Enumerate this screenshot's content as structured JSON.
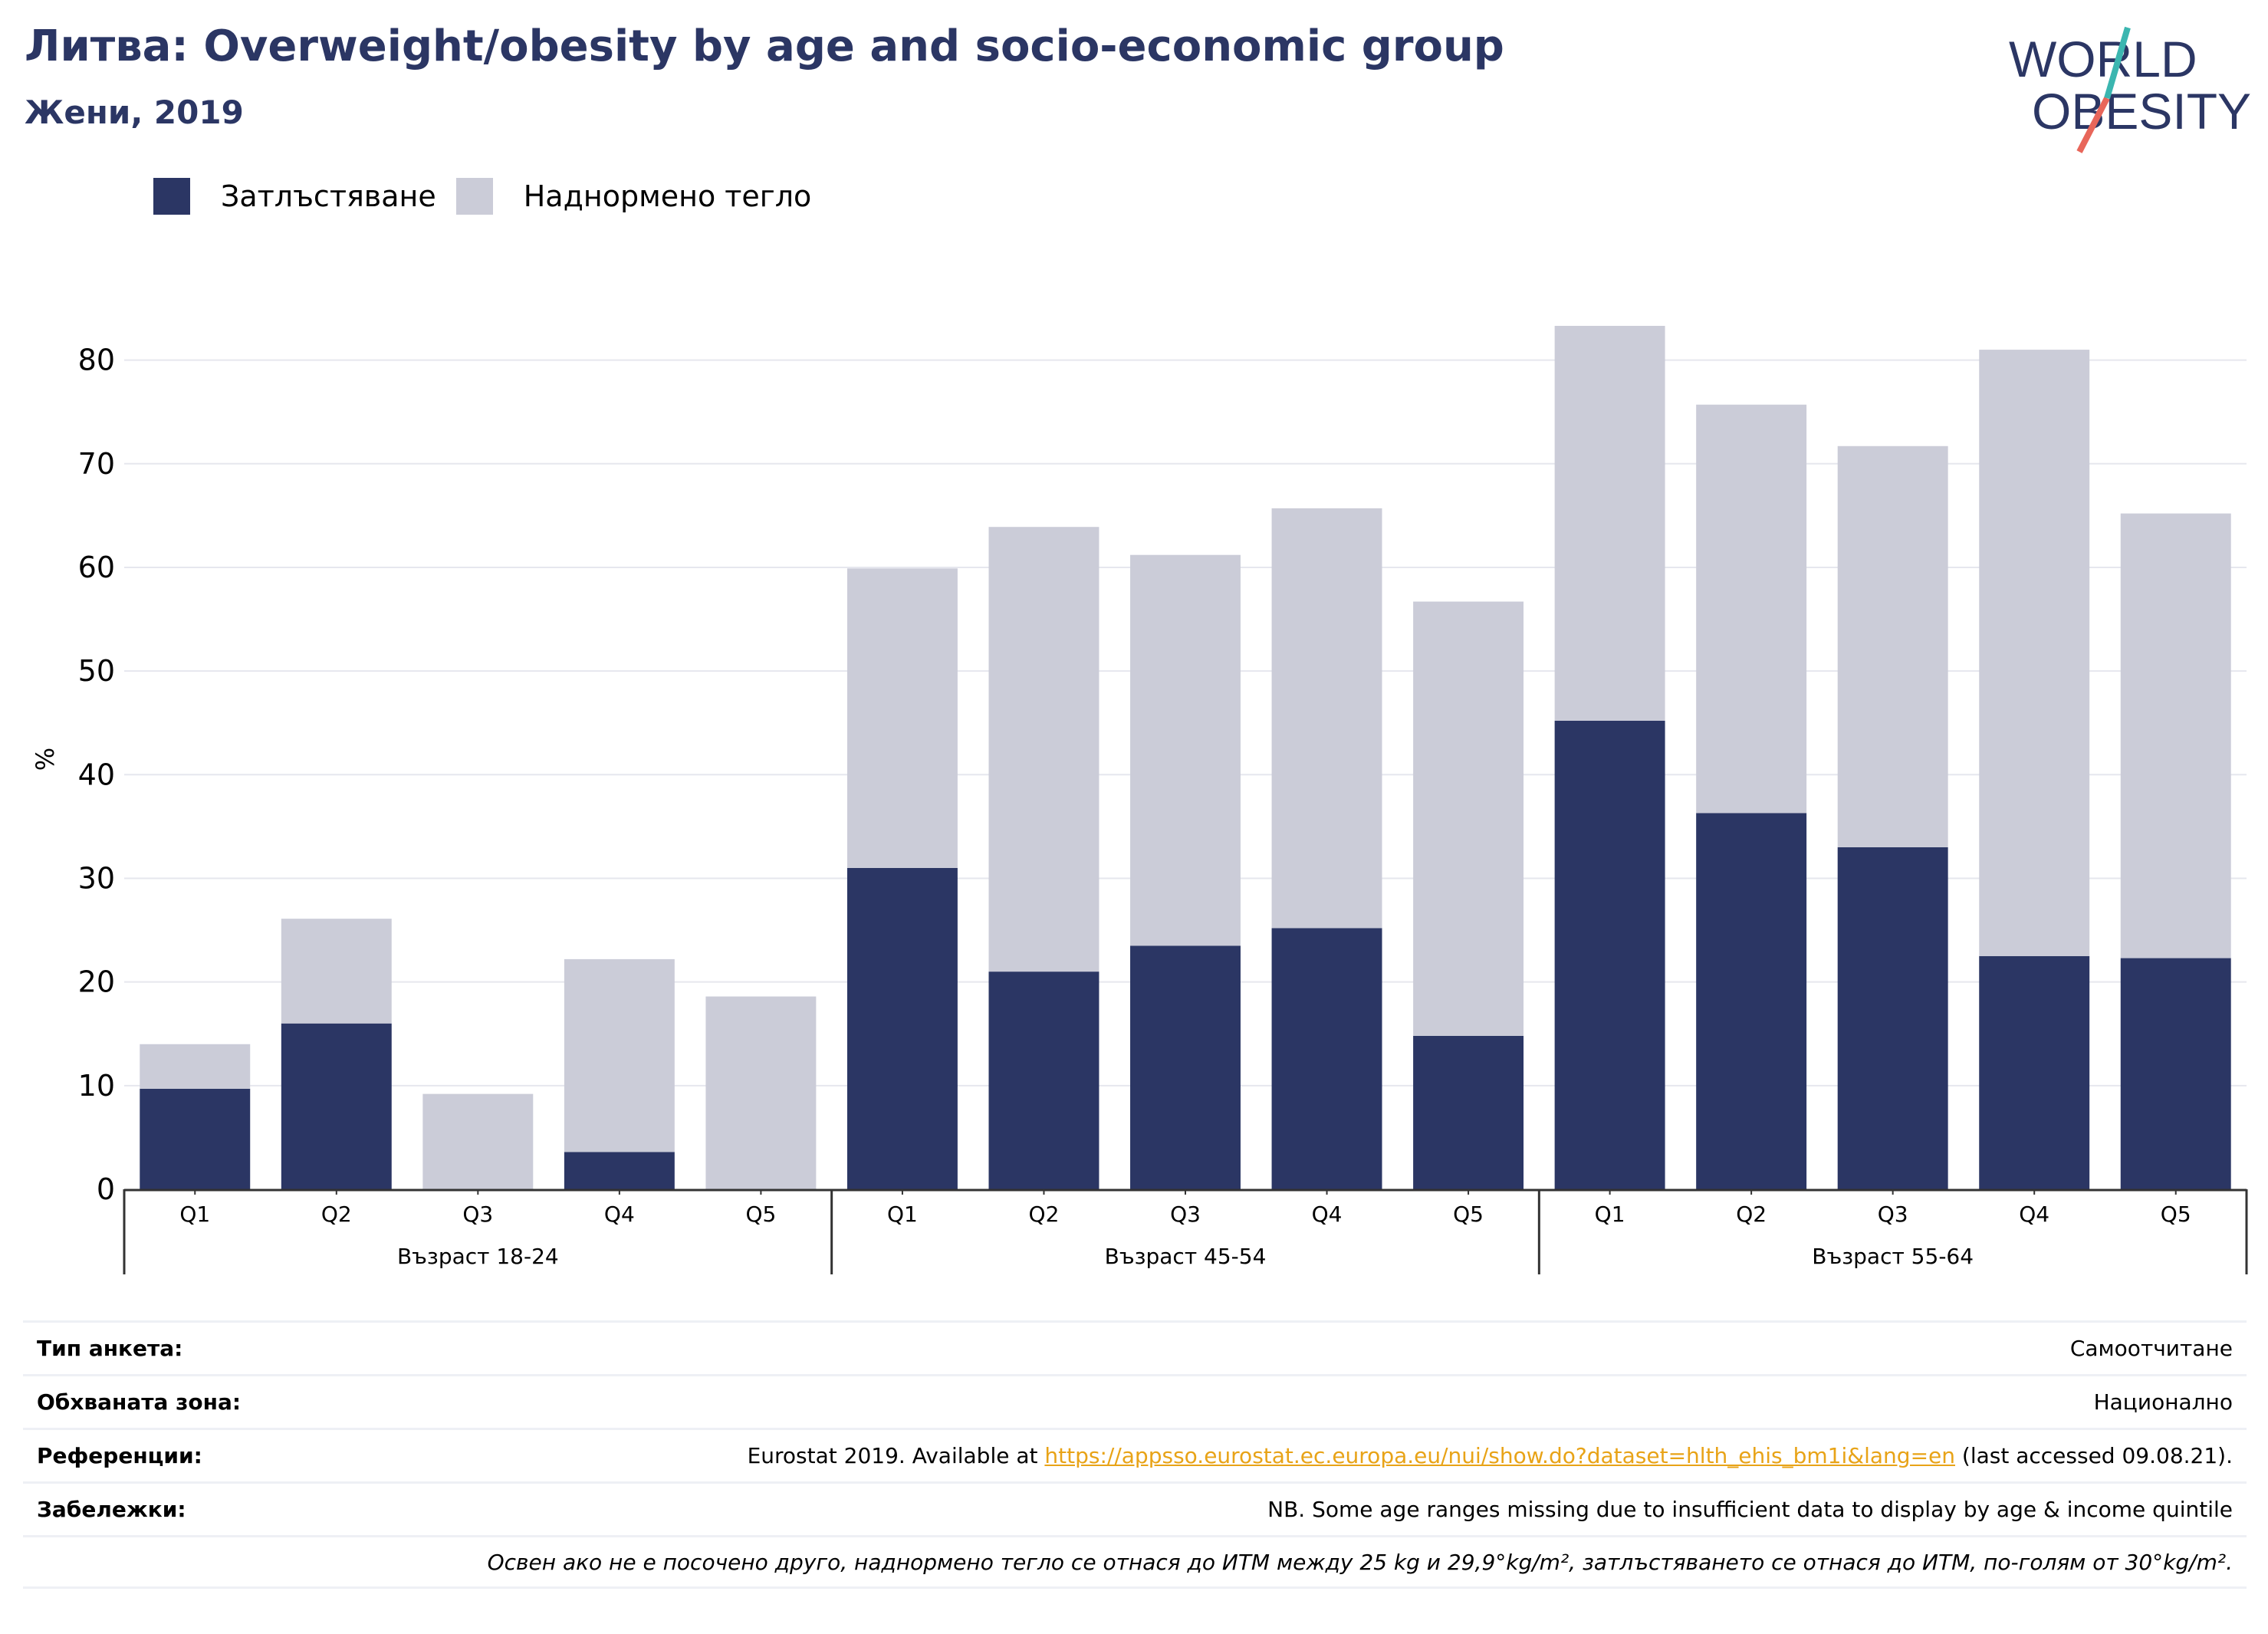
{
  "header": {
    "title": "Литва: Overweight/obesity by age and socio-economic group",
    "subtitle": "Жени, 2019"
  },
  "logo": {
    "line1": "WORLD",
    "line2": "OBESITY"
  },
  "legend": [
    {
      "label": "Затлъстяване",
      "color": "#2b3664"
    },
    {
      "label": "Наднормено тегло",
      "color": "#cbccd8"
    }
  ],
  "chart_data": {
    "type": "bar",
    "stacked": true,
    "ylabel": "%",
    "ylim": [
      0,
      85
    ],
    "yticks": [
      0,
      10,
      20,
      30,
      40,
      50,
      60,
      70,
      80
    ],
    "grid": true,
    "legend_position": "top-left",
    "groups": [
      "Възраст 18-24",
      "Възраст 45-54",
      "Възраст 55-64"
    ],
    "categories": [
      "Q1",
      "Q2",
      "Q3",
      "Q4",
      "Q5",
      "Q1",
      "Q2",
      "Q3",
      "Q4",
      "Q5",
      "Q1",
      "Q2",
      "Q3",
      "Q4",
      "Q5"
    ],
    "series": [
      {
        "name": "Затлъстяване",
        "color": "#2b3664",
        "values": [
          9.7,
          16.0,
          0,
          3.6,
          0,
          31.0,
          21.0,
          23.5,
          25.2,
          14.8,
          45.2,
          36.3,
          33.0,
          22.5,
          22.3
        ]
      },
      {
        "name": "Наднормено тегло",
        "color": "#cbccd8",
        "values": [
          4.3,
          10.1,
          9.2,
          18.6,
          18.6,
          28.9,
          42.9,
          37.7,
          40.5,
          41.9,
          38.1,
          39.4,
          38.7,
          58.5,
          42.9
        ]
      }
    ]
  },
  "info": {
    "survey_type_label": "Тип анкета:",
    "survey_type_value": "Самоотчитане",
    "coverage_label": "Обхваната зона:",
    "coverage_value": "Национално",
    "references_label": "Референции:",
    "references_prefix": "Eurostat 2019. Available at ",
    "references_link": "https://appsso.eurostat.ec.europa.eu/nui/show.do?dataset=hlth_ehis_bm1i&lang=en",
    "references_suffix": " (last accessed 09.08.21).",
    "notes_label": "Забележки:",
    "notes_value": "NB. Some age ranges missing due to insufficient data to display by age & income quintile",
    "definition_note": "Освен ако не е посочено друго, наднормено тегло се отнася до ИТМ между 25 kg и 29,9°kg/m², затлъстяването се отнася до ИТМ, по-голям от 30°kg/m²."
  }
}
